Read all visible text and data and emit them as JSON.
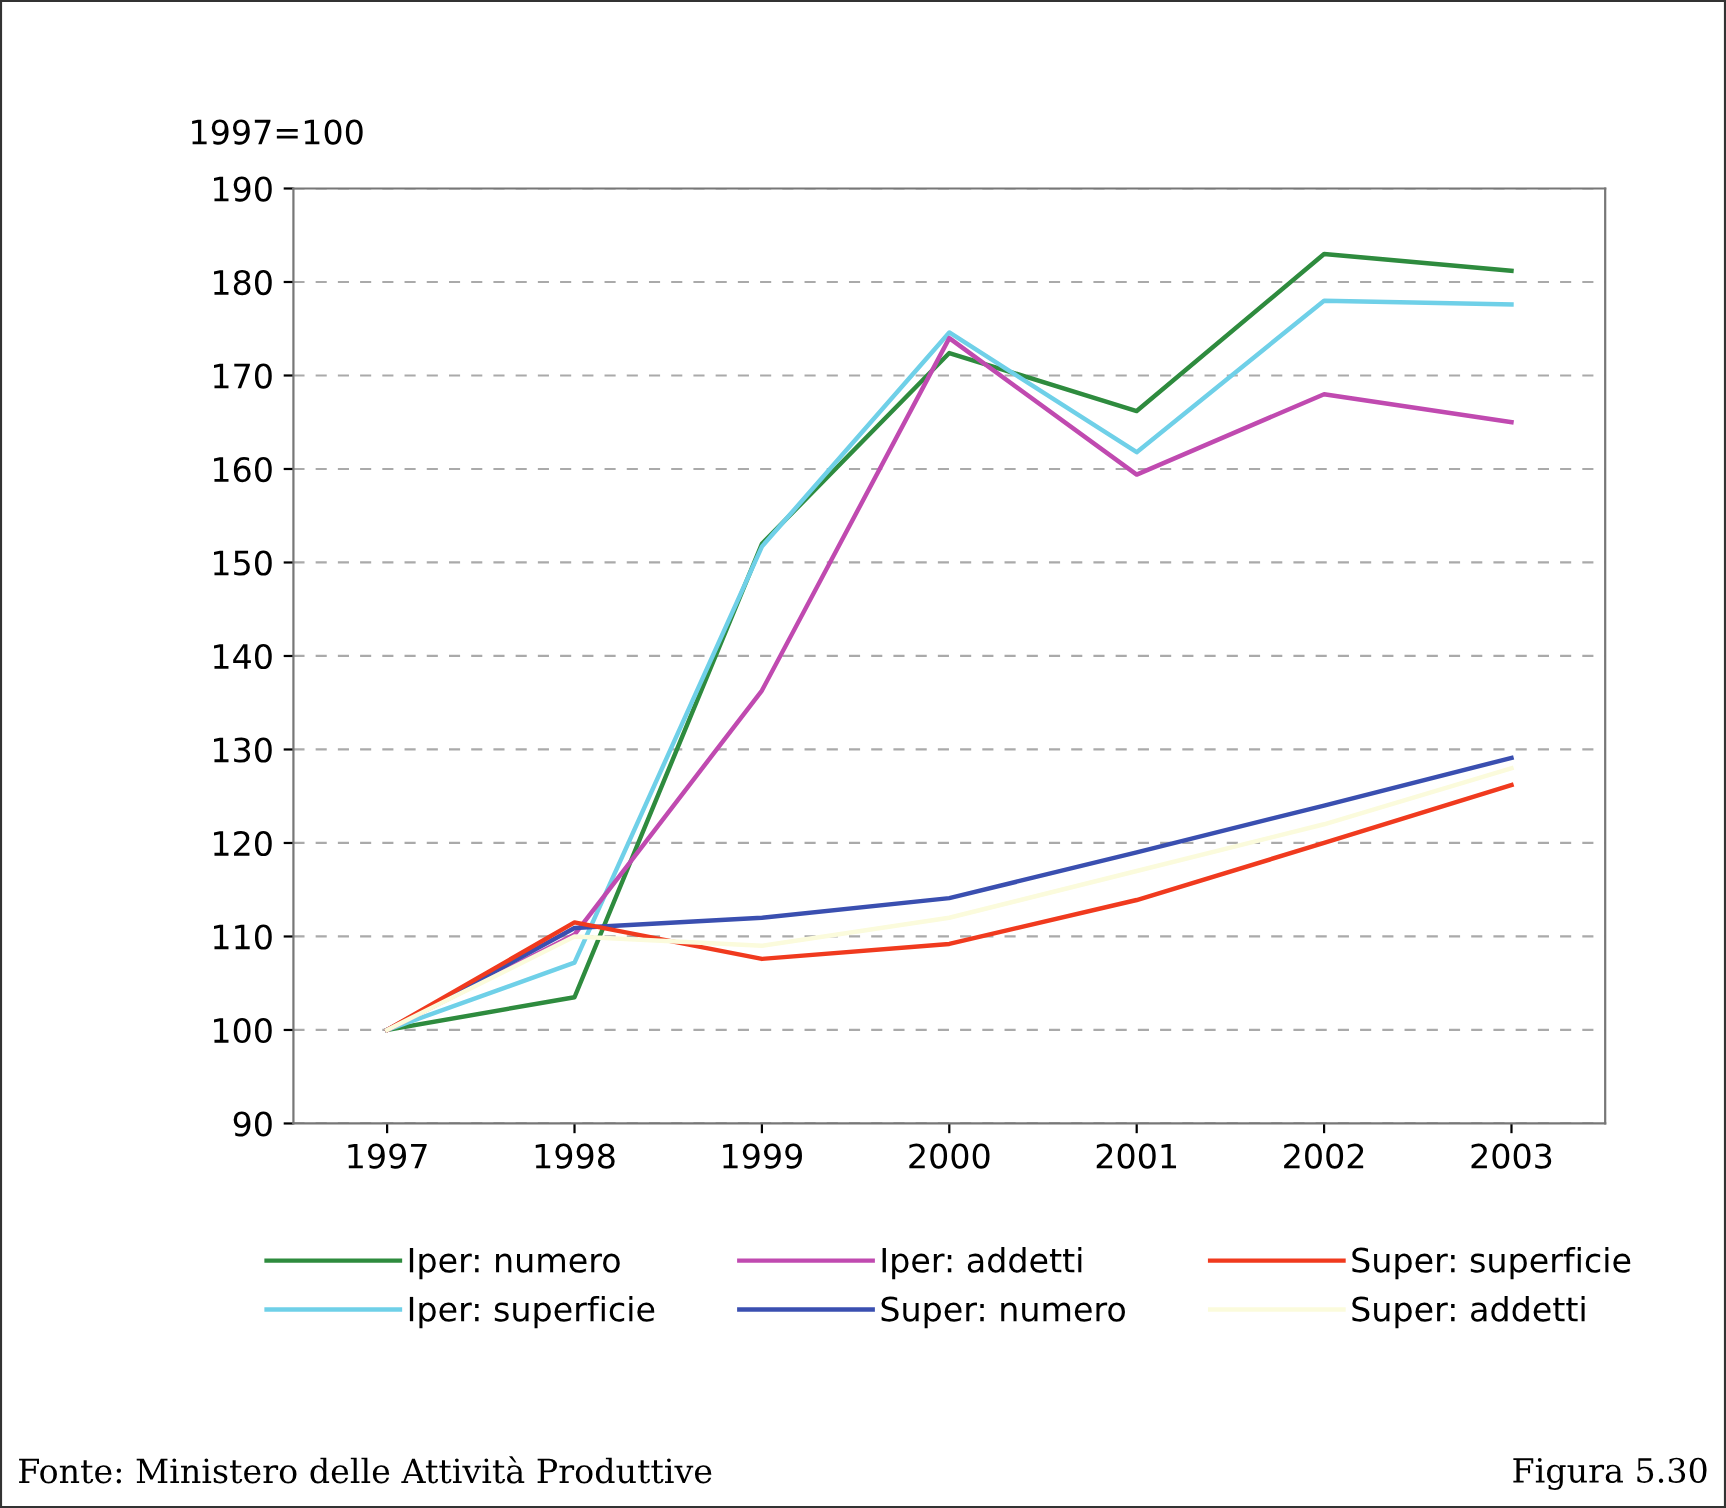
{
  "chart_data": {
    "type": "line",
    "ylabel": "1997=100",
    "categories": [
      "1997",
      "1998",
      "1999",
      "2000",
      "2001",
      "2002",
      "2003"
    ],
    "series": [
      {
        "name": "Iper: numero",
        "color": "#2e8b3e",
        "values": [
          100,
          103.5,
          152,
          172.4,
          166.2,
          183,
          181.2
        ]
      },
      {
        "name": "Iper: superficie",
        "color": "#6fd0e8",
        "values": [
          100,
          107.2,
          151.7,
          174.6,
          161.8,
          178,
          177.6
        ]
      },
      {
        "name": "Iper: addetti",
        "color": "#c04ab0",
        "values": [
          100,
          110.2,
          136.3,
          174,
          159.4,
          168,
          165
        ]
      },
      {
        "name": "Super: numero",
        "color": "#3a4fb0",
        "values": [
          100,
          110.9,
          112,
          114.1,
          119,
          124,
          129.1
        ]
      },
      {
        "name": "Super: superficie",
        "color": "#f03a1e",
        "values": [
          100,
          111.5,
          107.6,
          109.2,
          113.9,
          120,
          126.2
        ]
      },
      {
        "name": "Super: addetti",
        "color": "#fbfbdc",
        "values": [
          100,
          110,
          109,
          112,
          117,
          122,
          128
        ]
      }
    ],
    "ylim": [
      90,
      190
    ],
    "yticks": [
      90,
      100,
      110,
      120,
      130,
      140,
      150,
      160,
      170,
      180,
      190
    ],
    "grid": "y",
    "legend": "bottom",
    "marker": "none",
    "line_style": "solid",
    "annotations": [
      "Fonte: Ministero delle Attività Produttive",
      "Figura 5.30"
    ]
  }
}
